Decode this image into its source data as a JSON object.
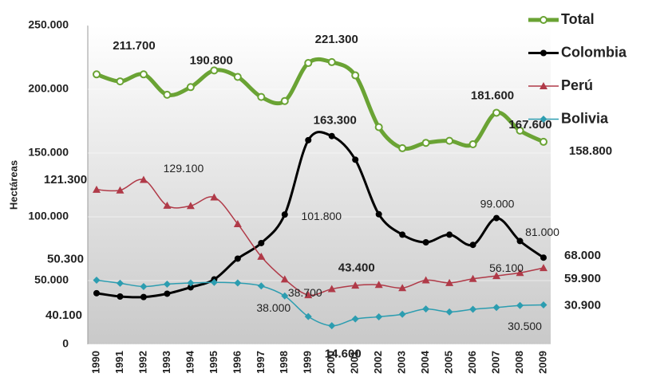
{
  "chart_data": {
    "type": "line",
    "y_label": "Hectáreas",
    "categories": [
      "1990",
      "1991",
      "1992",
      "1993",
      "1994",
      "1995",
      "1996",
      "1997",
      "1998",
      "1999",
      "2000",
      "2001",
      "2002",
      "2003",
      "2004",
      "2005",
      "2006",
      "2007",
      "2008",
      "2009"
    ],
    "ylim": [
      0,
      250000
    ],
    "yticks": [
      0,
      {
        "value": 50000,
        "label": "50.000"
      },
      {
        "value": 100000,
        "label": "100.000"
      },
      {
        "value": 150000,
        "label": "150.000"
      },
      {
        "value": 200000,
        "label": "200.000"
      },
      {
        "value": 250000,
        "label": "250.000"
      }
    ],
    "grid": true,
    "legend": "right",
    "series": [
      {
        "name": "Total",
        "color": "#6aa334",
        "marker": "circle-open",
        "values": [
          211700,
          206200,
          211700,
          195700,
          201700,
          214800,
          209700,
          194000,
          190800,
          220600,
          221300,
          210900,
          170300,
          153800,
          158000,
          159600,
          156900,
          181600,
          167600,
          158800
        ],
        "value_labels": [
          "211.700",
          null,
          null,
          null,
          null,
          null,
          null,
          null,
          "190.800",
          null,
          "221.300",
          null,
          null,
          null,
          null,
          null,
          null,
          "181.600",
          "167.600",
          "158.800"
        ]
      },
      {
        "name": "Colombia",
        "color": "#000000",
        "marker": "circle",
        "values": [
          40100,
          37500,
          37100,
          39700,
          44700,
          50900,
          67200,
          79400,
          101800,
          160100,
          163300,
          144800,
          102000,
          86000,
          80000,
          86000,
          78000,
          99000,
          81000,
          68000
        ],
        "value_labels": [
          "40.100",
          null,
          null,
          null,
          null,
          null,
          null,
          null,
          "101.800",
          null,
          "163.300",
          null,
          null,
          null,
          null,
          null,
          null,
          "99.000",
          "81.000",
          "68.000"
        ]
      },
      {
        "name": "Perú",
        "color": "#b03a48",
        "marker": "triangle",
        "values": [
          121300,
          120800,
          129100,
          108800,
          108600,
          115300,
          94400,
          68800,
          51000,
          38700,
          43400,
          46200,
          46700,
          44200,
          50300,
          48200,
          51400,
          53700,
          56100,
          59900
        ],
        "value_labels": [
          "121.300",
          null,
          "129.100",
          null,
          null,
          null,
          null,
          null,
          null,
          "38.700",
          "43.400",
          null,
          null,
          null,
          null,
          null,
          null,
          null,
          "56.100",
          "59.900"
        ]
      },
      {
        "name": "Bolivia",
        "color": "#2c9db0",
        "marker": "diamond",
        "values": [
          50300,
          47900,
          45300,
          47200,
          48100,
          48600,
          48100,
          45800,
          38000,
          21800,
          14600,
          19900,
          21600,
          23600,
          27700,
          25400,
          27500,
          28900,
          30500,
          30900
        ],
        "value_labels": [
          "50.300",
          null,
          null,
          null,
          null,
          null,
          null,
          null,
          "38.000",
          null,
          "14.600",
          null,
          null,
          null,
          null,
          null,
          null,
          null,
          "30.500",
          "30.900"
        ]
      }
    ]
  }
}
